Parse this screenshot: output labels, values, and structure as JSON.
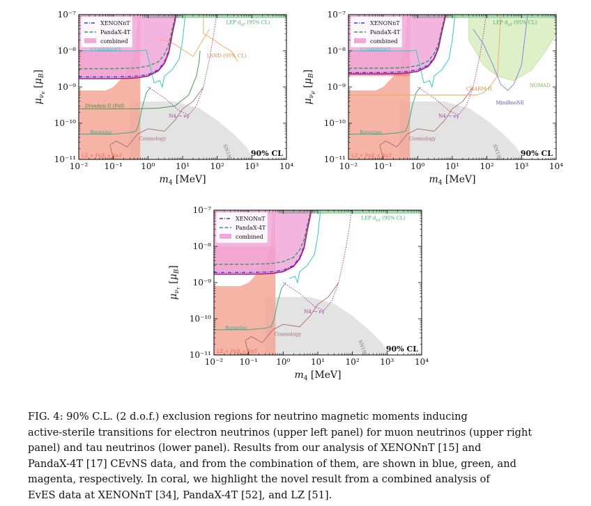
{
  "chart_data": [
    {
      "type": "area",
      "panel": "electron",
      "ylabel": "μ_νe [μB]",
      "xlabel": "m4 [MeV]",
      "xscale": "log",
      "yscale": "log",
      "xlim": [
        0.01,
        10000
      ],
      "ylim": [
        1e-11,
        1e-07
      ],
      "x_ticks": [
        "10⁻²",
        "10⁻¹",
        "10⁰",
        "10¹",
        "10²",
        "10³",
        "10⁴"
      ],
      "y_ticks": [
        "10⁻¹¹",
        "10⁻¹⁰",
        "10⁻⁹",
        "10⁻⁸",
        "10⁻⁷"
      ],
      "cl_label": "90% CL",
      "legend": [
        "XENONnT",
        "PandaX-4T",
        "combined"
      ],
      "legend_position": "top-left",
      "series": [
        {
          "name": "XENONnT",
          "x": [
            0.01,
            0.1,
            0.3,
            0.5,
            1,
            2,
            3,
            4,
            5,
            6,
            6.5
          ],
          "y": [
            1.9e-09,
            1.9e-09,
            1.95e-09,
            2e-09,
            2.2e-09,
            3e-09,
            5e-09,
            1e-08,
            3e-08,
            7e-08,
            1e-07
          ]
        },
        {
          "name": "PandaX-4T",
          "x": [
            0.01,
            0.1,
            0.3,
            0.5,
            1,
            2,
            3,
            4,
            5,
            6,
            6.5
          ],
          "y": [
            3.2e-09,
            3.2e-09,
            3.3e-09,
            3.4e-09,
            3.8e-09,
            5e-09,
            8e-09,
            1.5e-08,
            4e-08,
            8e-08,
            1e-07
          ]
        },
        {
          "name": "combined",
          "x": [
            0.01,
            0.1,
            0.3,
            0.5,
            1,
            2,
            3,
            4,
            5,
            6,
            6.5
          ],
          "y": [
            1.7e-09,
            1.7e-09,
            1.75e-09,
            1.8e-09,
            2e-09,
            2.8e-09,
            4.5e-09,
            9e-09,
            2.8e-08,
            6.5e-08,
            1e-07
          ]
        },
        {
          "name": "LZ + PnX + XnT [EvES]",
          "x": [
            0.01,
            0.03,
            0.06,
            0.1,
            0.2,
            0.3,
            0.4,
            0.45,
            0.5
          ],
          "y": [
            8e-10,
            8e-10,
            8e-10,
            1e-09,
            2e-09,
            4e-09,
            9e-09,
            2e-08,
            1e-07
          ]
        },
        {
          "name": "Borexino",
          "x": [
            0.01,
            0.1,
            0.3,
            0.45,
            0.55,
            0.7,
            0.9,
            1.2
          ],
          "y": [
            5e-11,
            5e-11,
            5.5e-11,
            6e-11,
            1e-10,
            3e-10,
            7e-10,
            1e-09
          ]
        },
        {
          "name": "COHERENT",
          "y_level": 1e-08
        },
        {
          "name": "Dresden-II (Fef)",
          "y_level": 2.5e-10
        },
        {
          "name": "LSND (95% CL)"
        },
        {
          "name": "LEP d_γZ (95% CL)"
        },
        {
          "name": "Cosmology"
        },
        {
          "name": "N4 → νγ"
        },
        {
          "name": "SN1987A"
        }
      ]
    },
    {
      "type": "area",
      "panel": "muon",
      "ylabel": "μ_νμ [μB]",
      "xlabel": "m4 [MeV]",
      "xscale": "log",
      "yscale": "log",
      "xlim": [
        0.01,
        10000
      ],
      "ylim": [
        1e-11,
        1e-07
      ],
      "x_ticks": [
        "10⁻²",
        "10⁻¹",
        "10⁰",
        "10¹",
        "10²",
        "10³",
        "10⁴"
      ],
      "y_ticks": [
        "10⁻¹¹",
        "10⁻¹⁰",
        "10⁻⁹",
        "10⁻⁸",
        "10⁻⁷"
      ],
      "cl_label": "90% CL",
      "legend": [
        "XENONnT",
        "PandaX-4T",
        "combined"
      ],
      "legend_position": "top-left",
      "series": [
        {
          "name": "XENONnT",
          "x": [
            0.01,
            0.1,
            0.3,
            0.5,
            1,
            2,
            3,
            4,
            5,
            6,
            6.5
          ],
          "y": [
            2.5e-09,
            2.5e-09,
            2.6e-09,
            2.7e-09,
            3e-09,
            4e-09,
            6.5e-09,
            1.3e-08,
            3.5e-08,
            7.5e-08,
            1e-07
          ]
        },
        {
          "name": "PandaX-4T",
          "x": [
            0.01,
            0.1,
            0.3,
            0.5,
            1,
            2,
            3,
            4,
            5,
            6,
            6.5
          ],
          "y": [
            3.3e-09,
            3.3e-09,
            3.4e-09,
            3.5e-09,
            3.9e-09,
            5.2e-09,
            8.5e-09,
            1.6e-08,
            4.2e-08,
            8.5e-08,
            1e-07
          ]
        },
        {
          "name": "combined",
          "x": [
            0.01,
            0.1,
            0.3,
            0.5,
            1,
            2,
            3,
            4,
            5,
            6,
            6.5
          ],
          "y": [
            2.3e-09,
            2.3e-09,
            2.35e-09,
            2.45e-09,
            2.7e-09,
            3.7e-09,
            6e-09,
            1.2e-08,
            3.3e-08,
            7.2e-08,
            1e-07
          ]
        },
        {
          "name": "LZ + PnX + XnT [EvES]",
          "x": [
            0.01,
            0.03,
            0.06,
            0.1,
            0.2,
            0.3,
            0.4,
            0.45,
            0.5
          ],
          "y": [
            8e-10,
            8e-10,
            8e-10,
            1e-09,
            2e-09,
            4e-09,
            9e-09,
            2e-08,
            1e-07
          ]
        },
        {
          "name": "Borexino",
          "x": [
            0.01,
            0.1,
            0.3,
            0.45,
            0.55,
            0.7,
            0.9,
            1.2
          ],
          "y": [
            5e-11,
            5e-11,
            5.5e-11,
            6e-11,
            1e-10,
            3e-10,
            7e-10,
            1e-09
          ]
        },
        {
          "name": "COHERENT",
          "y_level": 1e-08
        },
        {
          "name": "CHARM-II"
        },
        {
          "name": "MiniBooNE"
        },
        {
          "name": "NOMAD"
        },
        {
          "name": "LEP d_γZ (95% CL)"
        },
        {
          "name": "Cosmology"
        },
        {
          "name": "N4 → νγ"
        },
        {
          "name": "SN1987A"
        }
      ]
    },
    {
      "type": "area",
      "panel": "tau",
      "ylabel": "μ_ντ [μB]",
      "xlabel": "m4 [MeV]",
      "xscale": "log",
      "yscale": "log",
      "xlim": [
        0.01,
        10000
      ],
      "ylim": [
        1e-11,
        1e-07
      ],
      "x_ticks": [
        "10⁻²",
        "10⁻¹",
        "10⁰",
        "10¹",
        "10²",
        "10³",
        "10⁴"
      ],
      "y_ticks": [
        "10⁻¹¹",
        "10⁻¹⁰",
        "10⁻⁹",
        "10⁻⁸",
        "10⁻⁷"
      ],
      "cl_label": "90% CL",
      "legend": [
        "XENONnT",
        "PandaX-4T",
        "combined"
      ],
      "legend_position": "top-left",
      "series": [
        {
          "name": "XENONnT",
          "x": [
            0.01,
            0.1,
            0.3,
            0.5,
            1,
            2,
            3,
            4,
            5,
            6,
            6.5
          ],
          "y": [
            1.9e-09,
            1.9e-09,
            1.95e-09,
            2e-09,
            2.2e-09,
            3e-09,
            5e-09,
            1e-08,
            3e-08,
            7e-08,
            1e-07
          ]
        },
        {
          "name": "PandaX-4T",
          "x": [
            0.01,
            0.1,
            0.3,
            0.5,
            1,
            2,
            3,
            4,
            5,
            6,
            6.5
          ],
          "y": [
            3.2e-09,
            3.2e-09,
            3.3e-09,
            3.4e-09,
            3.8e-09,
            5e-09,
            8e-09,
            1.5e-08,
            4e-08,
            8e-08,
            1e-07
          ]
        },
        {
          "name": "combined",
          "x": [
            0.01,
            0.1,
            0.3,
            0.5,
            1,
            2,
            3,
            4,
            5,
            6,
            6.5
          ],
          "y": [
            1.7e-09,
            1.7e-09,
            1.75e-09,
            1.8e-09,
            2e-09,
            2.8e-09,
            4.5e-09,
            9e-09,
            2.8e-08,
            6.5e-08,
            1e-07
          ]
        },
        {
          "name": "LZ + PnX + XnT [EvES]",
          "x": [
            0.01,
            0.03,
            0.06,
            0.1,
            0.2,
            0.3,
            0.4,
            0.45,
            0.5
          ],
          "y": [
            8e-10,
            8e-10,
            8e-10,
            1e-09,
            2e-09,
            4e-09,
            9e-09,
            2e-08,
            1e-07
          ]
        },
        {
          "name": "Borexino",
          "x": [
            0.01,
            0.1,
            0.3,
            0.45,
            0.55,
            0.7,
            0.9,
            1.2
          ],
          "y": [
            5e-11,
            5e-11,
            5.5e-11,
            6e-11,
            1e-10,
            3e-10,
            7e-10,
            1e-09
          ]
        },
        {
          "name": "LEP d_γZ (95% CL)"
        },
        {
          "name": "Cosmology"
        },
        {
          "name": "N4 → νγ"
        },
        {
          "name": "SN1987A"
        }
      ]
    }
  ],
  "labels": {
    "legend": [
      "XENONnT",
      "PandaX-4T",
      "combined"
    ],
    "cl": "90% CL",
    "lep": "LEP d",
    "lep_sub": "γZ",
    "lep_cl": " (95% CL)",
    "lsnd": "LSND (95% CL)",
    "coherent": "COHERENT",
    "dresden": "Dresden-II (Fef)",
    "borexino": "Borexino",
    "cosmology": "Cosmology",
    "decay": "N4 → νγ",
    "sn": "SN1987A",
    "lz": "LZ + PnX + XnT",
    "eves": "[EvES]",
    "charm": "CHARM-II",
    "miniboone": "MiniBooNE",
    "nomad": "NOMAD",
    "x_ticks": [
      "10⁻²",
      "10⁻¹",
      "10⁰",
      "10¹",
      "10²",
      "10³",
      "10⁴"
    ],
    "y_ticks": [
      "10⁻¹¹",
      "10⁻¹⁰",
      "10⁻⁹",
      "10⁻⁸",
      "10⁻⁷"
    ],
    "ylabel_e": "e",
    "ylabel_mu": "μ",
    "ylabel_tau": "τ"
  },
  "colors": {
    "xenon": "#2f3fd6",
    "pandax": "#2e9a6b",
    "combined": "#b1177e",
    "combined_fill": "#f2a7da",
    "coral": "#f4a191",
    "coral_dark": "#ee6b5c",
    "borexino": "#3aa882",
    "coherent": "#30c8c0",
    "cosmology": "#a96a6a",
    "decay": "#a03a9a",
    "sn_fill": "#e3e3e3",
    "lep": "#3fa86a",
    "lep_fill": "#a6d9ae",
    "lsnd": "#f0a760",
    "charm": "#f0a760",
    "miniboone": "#7a7ae0",
    "nomad_fill": "#dff0c8",
    "dresden": "#3b8a3b"
  },
  "caption_lines": [
    "FIG. 4: 90% C.L. (2 d.o.f.) exclusion regions for neutrino magnetic moments inducing",
    "active-sterile transitions for electron neutrinos (upper left panel) for muon neutrinos (upper right",
    "panel) and tau neutrinos (lower panel). Results from our analysis of XENONnT [15] and",
    "PandaX-4T [17] CEvNS data, and from the combination of them, are shown in blue, green, and",
    "magenta, respectively. In coral, we highlight the novel result from a combined analysis of",
    "EvES data at XENONnT [34], PandaX-4T [52], and LZ [51]."
  ]
}
